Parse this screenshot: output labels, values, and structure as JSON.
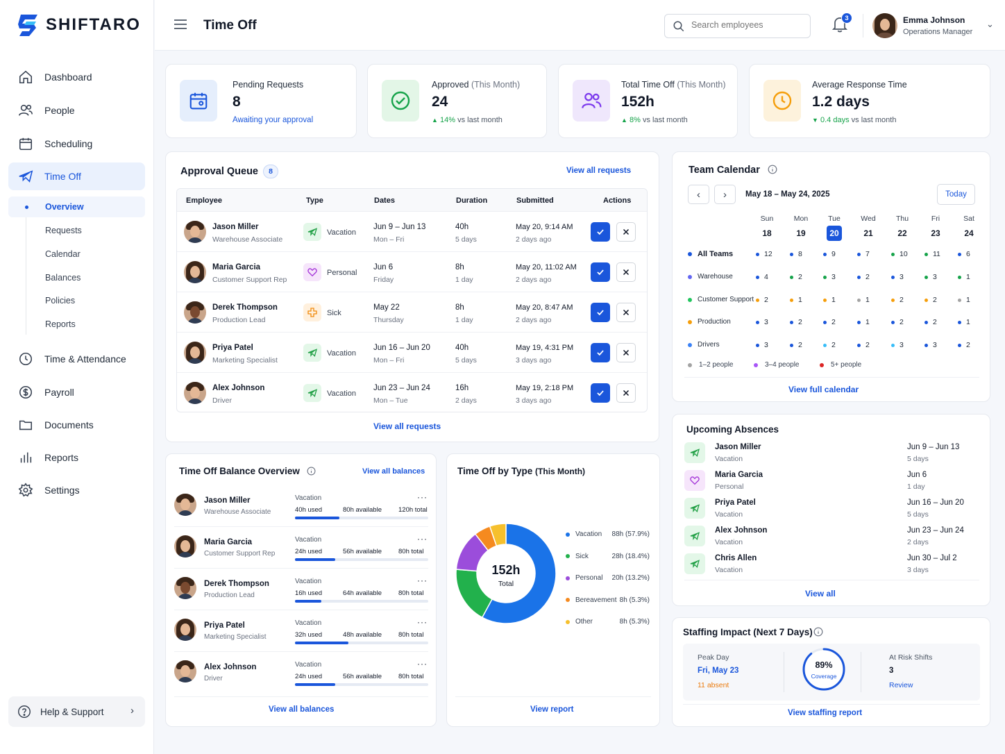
{
  "brand": {
    "name": "SHIFTARO"
  },
  "colors": {
    "accent": "#1a56db",
    "green": "#16a34a",
    "purple": "#8b5cf6",
    "orange": "#f59e0b",
    "red": "#dc2626"
  },
  "sidebar": {
    "items": [
      {
        "label": "Dashboard",
        "icon": "home-icon"
      },
      {
        "label": "People",
        "icon": "people-icon"
      },
      {
        "label": "Scheduling",
        "icon": "calendar-icon"
      },
      {
        "label": "Time Off",
        "icon": "plane-icon"
      },
      {
        "label": "Time & Attendance",
        "icon": "clock-icon"
      },
      {
        "label": "Payroll",
        "icon": "dollar-icon"
      },
      {
        "label": "Documents",
        "icon": "folder-icon"
      },
      {
        "label": "Reports",
        "icon": "bar-chart-icon"
      },
      {
        "label": "Settings",
        "icon": "gear-icon"
      }
    ],
    "subitems": [
      "Overview",
      "Requests",
      "Calendar",
      "Balances",
      "Policies",
      "Reports"
    ],
    "help": "Help & Support"
  },
  "header": {
    "title": "Time Off",
    "search_placeholder": "Search employees",
    "notifications": "3",
    "user_name": "Emma Johnson",
    "user_role": "Operations Manager"
  },
  "stats": [
    {
      "label": "Pending Requests",
      "label_suffix": "",
      "value": "8",
      "sub": "Awaiting your approval"
    },
    {
      "label": "Approved",
      "label_suffix": "(This Month)",
      "value": "24",
      "change": "14%",
      "sub": "vs last month"
    },
    {
      "label": "Total Time Off",
      "label_suffix": "(This Month)",
      "value": "152h",
      "change": "8%",
      "sub": "vs last month"
    },
    {
      "label": "Average Response Time",
      "label_suffix": "",
      "value": "1.2 days",
      "change": "0.4 days",
      "sub": "vs last month"
    }
  ],
  "queue": {
    "title": "Approval Queue",
    "count": "8",
    "view_all_top": "View all requests",
    "view_all_bottom": "View all requests",
    "columns": [
      "Employee",
      "Type",
      "Dates",
      "Duration",
      "Submitted",
      "Actions"
    ],
    "rows": [
      {
        "name": "Jason Miller",
        "role": "Warehouse Associate",
        "type": "Vacation",
        "dates": "Jun 9 – Jun 13",
        "days": "Mon – Fri",
        "duration": "40h",
        "duration_sub": "5 days",
        "submitted": "May 20, 9:14 AM",
        "ago": "2 days ago"
      },
      {
        "name": "Maria Garcia",
        "role": "Customer Support Rep",
        "type": "Personal",
        "dates": "Jun 6",
        "days": "Friday",
        "duration": "8h",
        "duration_sub": "1 day",
        "submitted": "May 20, 11:02 AM",
        "ago": "2 days ago"
      },
      {
        "name": "Derek Thompson",
        "role": "Production Lead",
        "type": "Sick",
        "dates": "May 22",
        "days": "Thursday",
        "duration": "8h",
        "duration_sub": "1 day",
        "submitted": "May 20, 8:47 AM",
        "ago": "2 days ago"
      },
      {
        "name": "Priya Patel",
        "role": "Marketing Specialist",
        "type": "Vacation",
        "dates": "Jun 16 – Jun 20",
        "days": "Mon – Fri",
        "duration": "40h",
        "duration_sub": "5 days",
        "submitted": "May 19, 4:31 PM",
        "ago": "3 days ago"
      },
      {
        "name": "Alex Johnson",
        "role": "Driver",
        "type": "Vacation",
        "dates": "Jun 23 – Jun 24",
        "days": "Mon – Tue",
        "duration": "16h",
        "duration_sub": "2 days",
        "submitted": "May 19, 2:18 PM",
        "ago": "3 days ago"
      }
    ]
  },
  "calendar": {
    "title": "Team Calendar",
    "range": "May 18 – May 24, 2025",
    "today": "Today",
    "days": [
      {
        "dow": "Sun",
        "date": "18"
      },
      {
        "dow": "Mon",
        "date": "19"
      },
      {
        "dow": "Tue",
        "date": "20"
      },
      {
        "dow": "Wed",
        "date": "21"
      },
      {
        "dow": "Thu",
        "date": "22"
      },
      {
        "dow": "Fri",
        "date": "23"
      },
      {
        "dow": "Sat",
        "date": "24"
      }
    ],
    "teams": [
      {
        "name": "All Teams",
        "color": "#1a56db",
        "counts": [
          "12",
          "8",
          "9",
          "7",
          "10",
          "11",
          "6"
        ],
        "dots": [
          "#1a56db",
          "#1a56db",
          "#1a56db",
          "#1a56db",
          "#16a34a",
          "#16a34a",
          "#1a56db"
        ]
      },
      {
        "name": "Warehouse",
        "color": "#6366f1",
        "counts": [
          "4",
          "2",
          "3",
          "2",
          "3",
          "3",
          "1"
        ],
        "dots": [
          "#1a56db",
          "#16a34a",
          "#16a34a",
          "#1a56db",
          "#1a56db",
          "#16a34a",
          "#16a34a"
        ]
      },
      {
        "name": "Customer Support",
        "color": "#22c55e",
        "counts": [
          "2",
          "1",
          "1",
          "1",
          "2",
          "2",
          "1"
        ],
        "dots": [
          "#f59e0b",
          "#f59e0b",
          "#f59e0b",
          "#a3a3a3",
          "#f59e0b",
          "#f59e0b",
          "#a3a3a3"
        ]
      },
      {
        "name": "Production",
        "color": "#f59e0b",
        "counts": [
          "3",
          "2",
          "2",
          "1",
          "2",
          "2",
          "1"
        ],
        "dots": [
          "#1a56db",
          "#1a56db",
          "#1a56db",
          "#1a56db",
          "#1a56db",
          "#1a56db",
          "#1a56db"
        ]
      },
      {
        "name": "Drivers",
        "color": "#3b82f6",
        "counts": [
          "3",
          "2",
          "2",
          "2",
          "3",
          "3",
          "2"
        ],
        "dots": [
          "#1a56db",
          "#1a56db",
          "#38bdf8",
          "#1a56db",
          "#38bdf8",
          "#1a56db",
          "#1a56db"
        ]
      }
    ],
    "legend": [
      {
        "label": "1–2 people",
        "color": "#a3a3a3"
      },
      {
        "label": "3–4 people",
        "color": "#a855f7"
      },
      {
        "label": "5+ people",
        "color": "#dc2626"
      }
    ],
    "view_full": "View full calendar"
  },
  "upcoming": {
    "title": "Upcoming Absences",
    "items": [
      {
        "name": "Jason Miller",
        "type": "Vacation",
        "dates": "Jun 9 – Jun 13",
        "days": "5 days",
        "kind": "vac"
      },
      {
        "name": "Maria Garcia",
        "type": "Personal",
        "dates": "Jun 6",
        "days": "1 day",
        "kind": "per"
      },
      {
        "name": "Priya Patel",
        "type": "Vacation",
        "dates": "Jun 16 – Jun 20",
        "days": "5 days",
        "kind": "vac"
      },
      {
        "name": "Alex Johnson",
        "type": "Vacation",
        "dates": "Jun 23 – Jun 24",
        "days": "2 days",
        "kind": "vac"
      },
      {
        "name": "Chris Allen",
        "type": "Vacation",
        "dates": "Jun 30 – Jul 2",
        "days": "3 days",
        "kind": "vac"
      }
    ],
    "view_all": "View all"
  },
  "balances": {
    "title": "Time Off Balance Overview",
    "view_all_top": "View all balances",
    "view_all_bottom": "View all balances",
    "rows": [
      {
        "name": "Jason Miller",
        "role": "Warehouse Associate",
        "policy": "Vacation",
        "used": "40h used",
        "available": "80h available",
        "total": "120h total",
        "fraction": 0.333
      },
      {
        "name": "Maria Garcia",
        "role": "Customer Support Rep",
        "policy": "Vacation",
        "used": "24h used",
        "available": "56h available",
        "total": "80h total",
        "fraction": 0.3
      },
      {
        "name": "Derek Thompson",
        "role": "Production Lead",
        "policy": "Vacation",
        "used": "16h used",
        "available": "64h available",
        "total": "80h total",
        "fraction": 0.2
      },
      {
        "name": "Priya Patel",
        "role": "Marketing Specialist",
        "policy": "Vacation",
        "used": "32h used",
        "available": "48h available",
        "total": "80h total",
        "fraction": 0.4
      },
      {
        "name": "Alex Johnson",
        "role": "Driver",
        "policy": "Vacation",
        "used": "24h used",
        "available": "56h available",
        "total": "80h total",
        "fraction": 0.3
      }
    ]
  },
  "by_type": {
    "title": "Time Off by Type",
    "title_suffix": "(This Month)",
    "total": "152h",
    "total_label": "Total",
    "view_report": "View report"
  },
  "chart_data": {
    "type": "pie",
    "title": "Time Off by Type (This Month)",
    "categories": [
      "Vacation",
      "Sick",
      "Personal",
      "Bereavement",
      "Other"
    ],
    "values": [
      88,
      28,
      20,
      8,
      8
    ],
    "labels": [
      "88h (57.9%)",
      "28h (18.4%)",
      "20h (13.2%)",
      "8h (5.3%)",
      "8h (5.3%)"
    ],
    "colors": [
      "#1a73e8",
      "#22b14c",
      "#9b4ddb",
      "#f58a1f",
      "#f6c02d"
    ]
  },
  "staffing": {
    "title": "Staffing Impact (Next 7 Days)",
    "peak_label": "Peak Day",
    "peak_value": "Fri, May 23",
    "peak_sub": "11 absent",
    "coverage": "89%",
    "coverage_fraction": 0.89,
    "coverage_label": "Coverage",
    "risk_label": "At Risk Shifts",
    "risk_value": "3",
    "risk_link": "Review",
    "view_report": "View staffing report"
  }
}
